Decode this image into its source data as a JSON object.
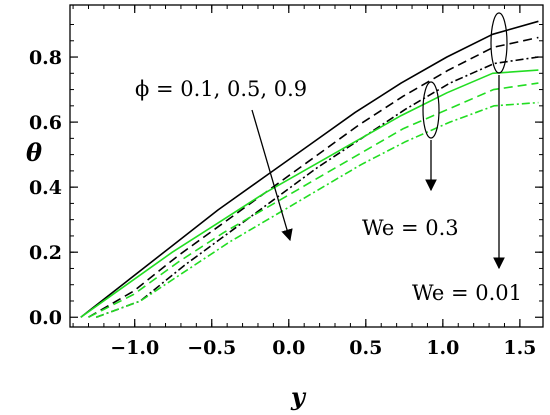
{
  "chart_data": {
    "type": "line",
    "title": "",
    "xlabel": "y",
    "ylabel": "θ",
    "xlim": [
      -1.42,
      1.65
    ],
    "ylim": [
      -0.03,
      0.96
    ],
    "xticks": [
      -1.0,
      -0.5,
      0.0,
      0.5,
      1.0,
      1.5
    ],
    "xtick_labels": [
      "−1.0",
      "−0.5",
      "0.0",
      "0.5",
      "1.0",
      "1.5"
    ],
    "yticks": [
      0.0,
      0.2,
      0.4,
      0.6,
      0.8
    ],
    "ytick_labels": [
      "0.0",
      "0.2",
      "0.4",
      "0.6",
      "0.8"
    ],
    "grid": false,
    "legend": "none",
    "colors": {
      "black": "#000000",
      "green": "#22dd22"
    },
    "x": [
      -1.5708,
      -1.2566,
      -0.9425,
      -0.6283,
      -0.3142,
      0.0,
      0.3142,
      0.6283,
      0.9425,
      1.2566,
      1.5708
    ],
    "series": [
      {
        "color": "black",
        "dash": "solid",
        "start": -1.35,
        "values": [
          0.0,
          0.11,
          0.22,
          0.33,
          0.43,
          0.53,
          0.63,
          0.72,
          0.8,
          0.87,
          0.91
        ]
      },
      {
        "color": "black",
        "dash": "dash",
        "start": -1.3,
        "values": [
          0.0,
          0.08,
          0.19,
          0.29,
          0.39,
          0.49,
          0.59,
          0.68,
          0.76,
          0.83,
          0.86
        ]
      },
      {
        "color": "black",
        "dash": "dashdot",
        "start": -1.25,
        "values": [
          0.0,
          0.05,
          0.16,
          0.26,
          0.36,
          0.46,
          0.55,
          0.64,
          0.72,
          0.78,
          0.8
        ]
      },
      {
        "color": "green",
        "dash": "solid",
        "start": -1.35,
        "values": [
          0.0,
          0.1,
          0.2,
          0.29,
          0.38,
          0.46,
          0.54,
          0.62,
          0.69,
          0.75,
          0.76
        ]
      },
      {
        "color": "green",
        "dash": "dash",
        "start": -1.3,
        "values": [
          0.0,
          0.07,
          0.17,
          0.26,
          0.34,
          0.42,
          0.5,
          0.58,
          0.64,
          0.7,
          0.72
        ]
      },
      {
        "color": "green",
        "dash": "dashdot",
        "start": -1.25,
        "values": [
          0.0,
          0.05,
          0.14,
          0.23,
          0.31,
          0.39,
          0.47,
          0.54,
          0.6,
          0.65,
          0.66
        ]
      }
    ],
    "annotations": {
      "phi_label": "ϕ = 0.1, 0.5, 0.9",
      "we1_label": "We = 0.3",
      "we2_label": "We = 0.01"
    }
  }
}
